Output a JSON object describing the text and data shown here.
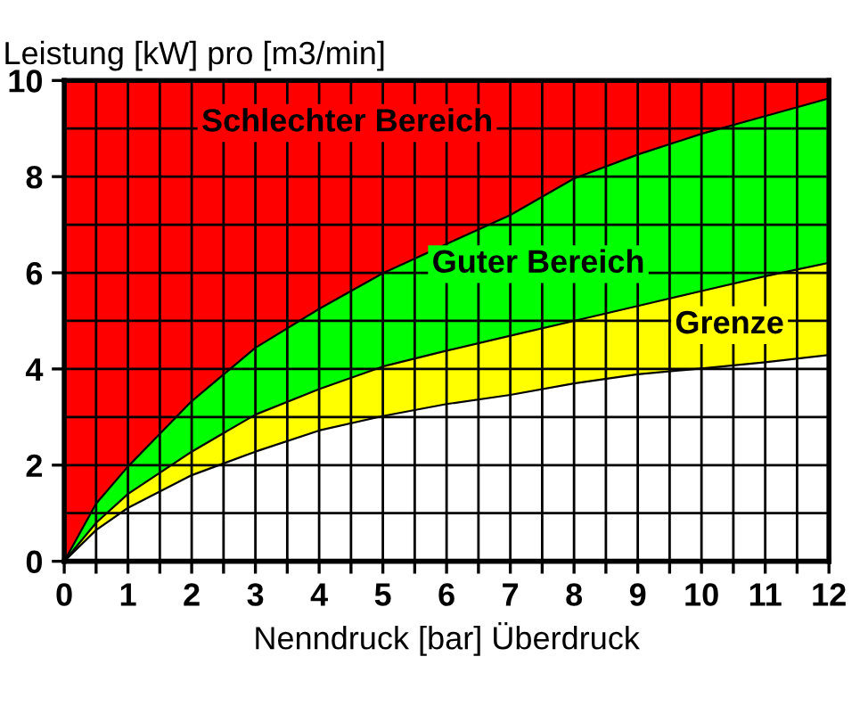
{
  "chart_data": {
    "type": "area",
    "xlabel": "Nenndruck [bar] Überdruck",
    "ylabel": "Leistung [kW] pro [m3/min]",
    "x": [
      0,
      0.5,
      1,
      2,
      3,
      4,
      5,
      6,
      7,
      8,
      9,
      10,
      11,
      12
    ],
    "stacked": true,
    "series": [
      {
        "color": "#ffffff",
        "values": [
          0,
          0.65,
          1.11,
          1.79,
          2.28,
          2.72,
          3.02,
          3.27,
          3.46,
          3.7,
          3.89,
          4.01,
          4.14,
          4.29
        ]
      },
      {
        "name": "Grenze",
        "color": "#ffff00",
        "values": [
          0,
          0.15,
          0.29,
          0.49,
          0.77,
          0.86,
          1.03,
          1.11,
          1.23,
          1.3,
          1.42,
          1.61,
          1.79,
          1.92
        ]
      },
      {
        "name": "Guter Bereich",
        "color": "#00ff00",
        "values": [
          0,
          0.4,
          0.57,
          1.05,
          1.39,
          1.67,
          1.94,
          2.22,
          2.51,
          2.96,
          3.15,
          3.27,
          3.33,
          3.42
        ]
      },
      {
        "name": "Schlechter Bereich",
        "color": "#ff0000",
        "values": [
          10,
          8.8,
          8.03,
          6.67,
          5.56,
          4.75,
          4.01,
          3.4,
          2.8,
          2.04,
          1.54,
          1.11,
          0.74,
          0.37
        ]
      }
    ],
    "xlim": [
      0,
      12
    ],
    "ylim": [
      0,
      10
    ],
    "xticks": [
      0,
      {
        "value": 0.5,
        "label": null
      },
      1,
      {
        "value": 1.5,
        "label": null
      },
      2,
      {
        "value": 2.5,
        "label": null
      },
      3,
      {
        "value": 3.5,
        "label": null
      },
      4,
      {
        "value": 4.5,
        "label": null
      },
      5,
      {
        "value": 5.5,
        "label": null
      },
      6,
      {
        "value": 6.5,
        "label": null
      },
      7,
      {
        "value": 7.5,
        "label": null
      },
      8,
      {
        "value": 8.5,
        "label": null
      },
      9,
      {
        "value": 9.5,
        "label": null
      },
      10,
      {
        "value": 10.5,
        "label": null
      },
      11,
      {
        "value": 11.5,
        "label": null
      },
      12
    ],
    "yticks": [
      0,
      2,
      4,
      6,
      8,
      10
    ],
    "grid": true,
    "legend": false
  }
}
